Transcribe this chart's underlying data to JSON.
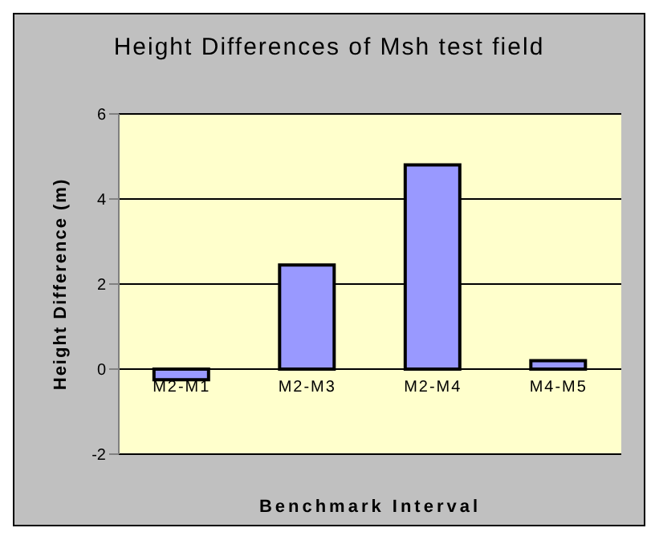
{
  "chart_data": {
    "type": "bar",
    "title": "Height Differences of Msh test field",
    "xlabel": "Benchmark Interval",
    "ylabel": "Height Difference (m)",
    "categories": [
      "M2-M1",
      "M2-M3",
      "M2-M4",
      "M4-M5"
    ],
    "values": [
      -0.25,
      2.45,
      4.8,
      0.2
    ],
    "color": "#9999ff",
    "ylim": [
      -2,
      6
    ],
    "yticks": [
      -2,
      0,
      2,
      4,
      6
    ],
    "grid": "y"
  }
}
